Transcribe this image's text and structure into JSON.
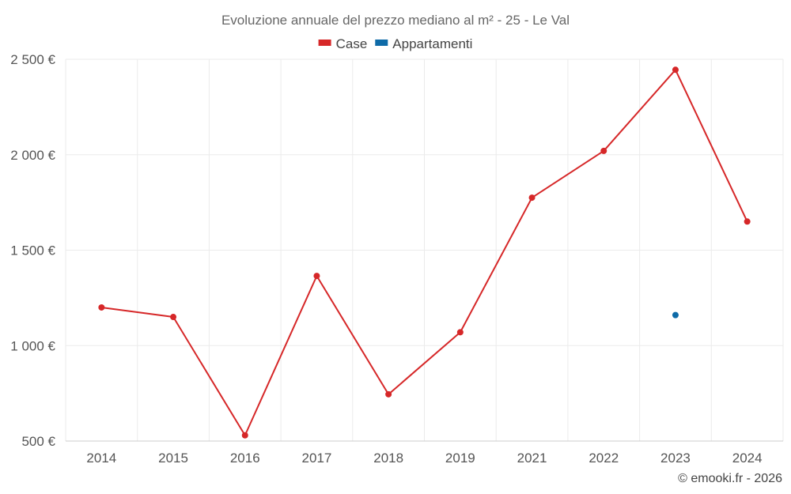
{
  "chart_data": {
    "type": "line",
    "title": "Evoluzione annuale del prezzo mediano al m² - 25 - Le Val",
    "categories": [
      "2014",
      "2015",
      "2016",
      "2017",
      "2018",
      "2019",
      "2021",
      "2022",
      "2023",
      "2024"
    ],
    "y_ticks": [
      500,
      1000,
      1500,
      2000,
      2500
    ],
    "y_tick_labels": [
      "500 €",
      "1 000 €",
      "1 500 €",
      "2 000 €",
      "2 500 €"
    ],
    "ylim": [
      500,
      2500
    ],
    "xlabel": "",
    "ylabel": "",
    "legend_position": "top-center",
    "grid": true,
    "series": [
      {
        "name": "Case",
        "color": "#d62728",
        "values": [
          1200,
          1150,
          530,
          1365,
          745,
          1070,
          1775,
          2020,
          2445,
          1650
        ]
      },
      {
        "name": "Appartamenti",
        "color": "#0e6ba8",
        "values": [
          null,
          null,
          null,
          null,
          null,
          null,
          null,
          null,
          1160,
          null
        ]
      }
    ]
  },
  "credit": "© emooki.fr - 2026"
}
